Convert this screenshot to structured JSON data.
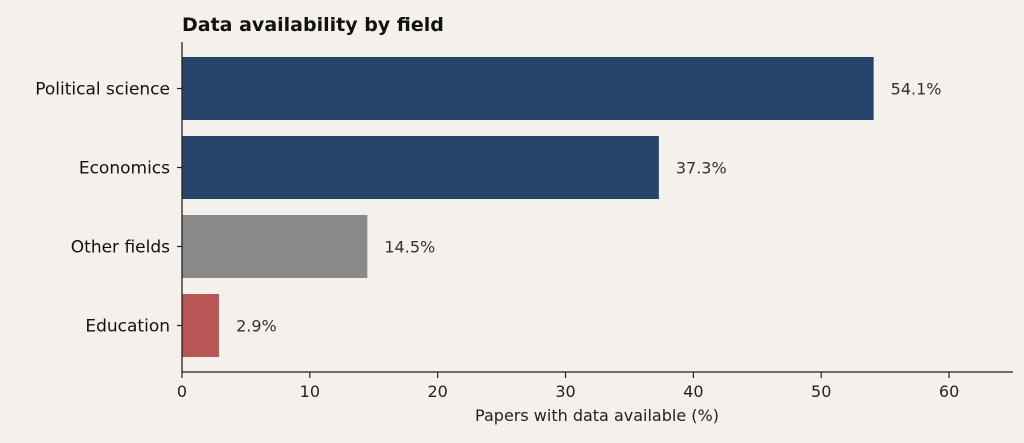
{
  "chart_data": {
    "type": "bar",
    "orientation": "horizontal",
    "title": "Data availability by field",
    "xlabel": "Papers with data available (%)",
    "ylabel": "",
    "xlim": [
      0,
      65
    ],
    "xticks": [
      0,
      10,
      20,
      30,
      40,
      50,
      60
    ],
    "grid": false,
    "categories": [
      "Political science",
      "Economics",
      "Other fields",
      "Education"
    ],
    "values": [
      54.1,
      37.3,
      14.5,
      2.9
    ],
    "value_labels": [
      "54.1%",
      "37.3%",
      "14.5%",
      "2.9%"
    ],
    "colors": [
      "#27446b",
      "#27446b",
      "#8a8a8a",
      "#b85555"
    ]
  }
}
